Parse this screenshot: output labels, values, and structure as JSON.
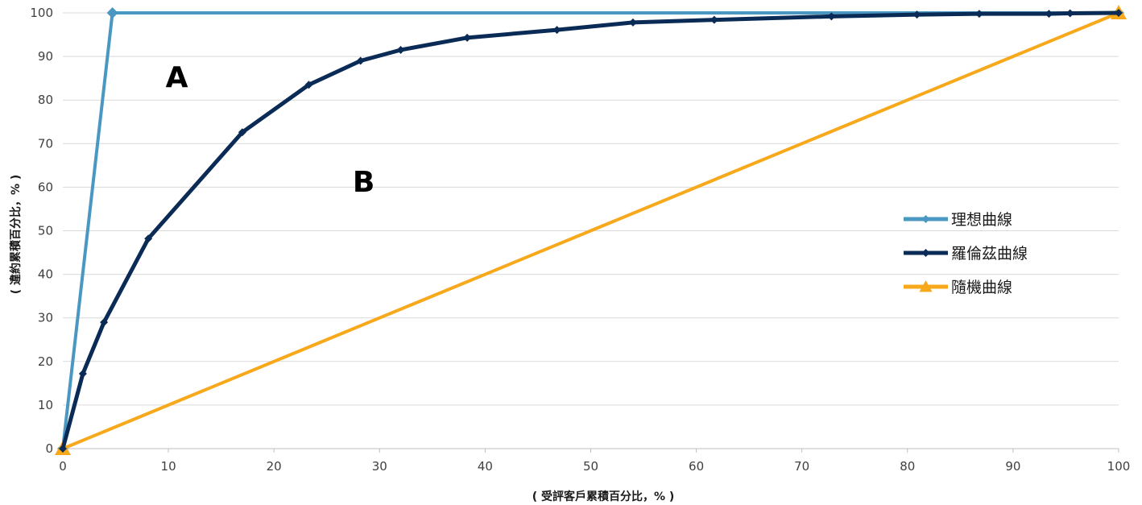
{
  "chart_data": {
    "type": "line",
    "xlabel": "( 受評客戶累積百分比，% )",
    "ylabel": "( 違約累積百分比，% )",
    "xlim": [
      0,
      100
    ],
    "ylim": [
      0,
      100
    ],
    "x_ticks": [
      0,
      10,
      20,
      30,
      40,
      50,
      60,
      70,
      80,
      90,
      100
    ],
    "y_ticks": [
      0,
      10,
      20,
      30,
      40,
      50,
      60,
      70,
      80,
      90,
      100
    ],
    "grid": "horizontal",
    "legend_position": "right",
    "annotations": [
      {
        "text": "A",
        "x": 10.8,
        "y": 83
      },
      {
        "text": "B",
        "x": 28.5,
        "y": 59
      }
    ],
    "series": [
      {
        "name": "理想曲線",
        "color": "#4a98c2",
        "marker": "diamond",
        "x": [
          0,
          4.7,
          100
        ],
        "y": [
          0,
          100,
          100
        ]
      },
      {
        "name": "羅倫茲曲線",
        "color": "#0b2b57",
        "marker": "diamond",
        "x": [
          0,
          1.9,
          3.9,
          8.1,
          17.0,
          23.3,
          28.2,
          32.0,
          38.3,
          46.8,
          54.0,
          61.7,
          72.8,
          80.9,
          86.8,
          93.4,
          95.4,
          100
        ],
        "y": [
          0,
          17.2,
          29.0,
          48.2,
          72.6,
          83.5,
          89.0,
          91.5,
          94.3,
          96.1,
          97.8,
          98.4,
          99.2,
          99.6,
          99.8,
          99.8,
          99.9,
          100
        ]
      },
      {
        "name": "隨機曲線",
        "color": "#f7a81b",
        "marker": "triangle",
        "x": [
          0,
          100
        ],
        "y": [
          0,
          100
        ]
      }
    ]
  }
}
